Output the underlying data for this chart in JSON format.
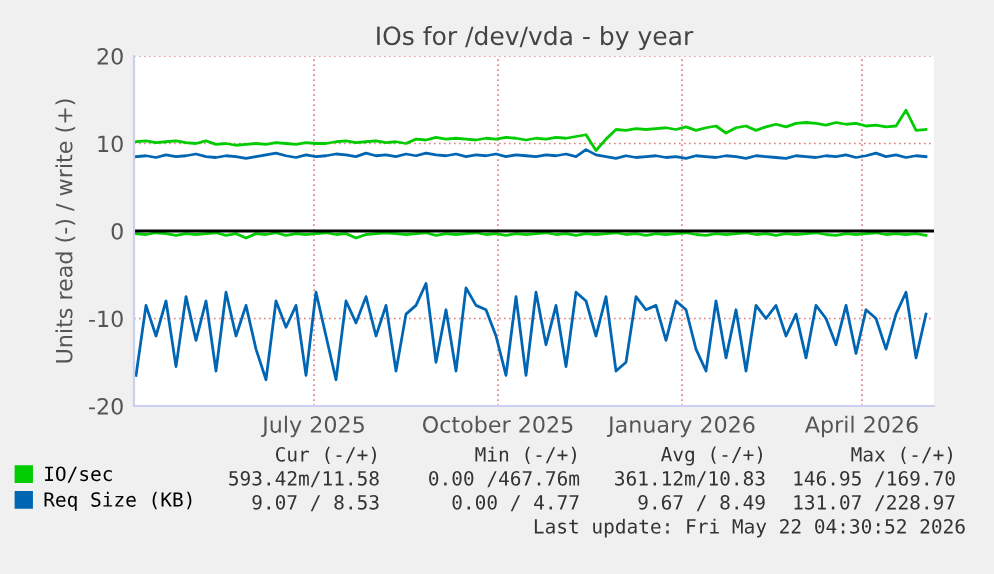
{
  "chart_data": {
    "type": "line",
    "title": "IOs for /dev/vda - by year",
    "ylabel": "Units read (-) / write (+)",
    "x": [
      "2025-04-18",
      "2025-04-23",
      "2025-04-28",
      "2025-05-03",
      "2025-05-08",
      "2025-05-13",
      "2025-05-18",
      "2025-05-23",
      "2025-05-28",
      "2025-06-02",
      "2025-06-07",
      "2025-06-12",
      "2025-06-17",
      "2025-06-22",
      "2025-06-27",
      "2025-07-02",
      "2025-07-07",
      "2025-07-12",
      "2025-07-17",
      "2025-07-22",
      "2025-07-27",
      "2025-08-01",
      "2025-08-06",
      "2025-08-11",
      "2025-08-16",
      "2025-08-21",
      "2025-08-26",
      "2025-08-31",
      "2025-09-05",
      "2025-09-10",
      "2025-09-15",
      "2025-09-20",
      "2025-09-25",
      "2025-09-30",
      "2025-10-05",
      "2025-10-10",
      "2025-10-15",
      "2025-10-20",
      "2025-10-25",
      "2025-10-30",
      "2025-11-04",
      "2025-11-09",
      "2025-11-14",
      "2025-11-19",
      "2025-11-24",
      "2025-11-29",
      "2025-12-04",
      "2025-12-09",
      "2025-12-14",
      "2025-12-19",
      "2025-12-24",
      "2025-12-29",
      "2026-01-03",
      "2026-01-08",
      "2026-01-13",
      "2026-01-18",
      "2026-01-23",
      "2026-01-28",
      "2026-02-02",
      "2026-02-07",
      "2026-02-12",
      "2026-02-17",
      "2026-02-22",
      "2026-02-27",
      "2026-03-04",
      "2026-03-09",
      "2026-03-14",
      "2026-03-19",
      "2026-03-24",
      "2026-03-29",
      "2026-04-03",
      "2026-04-08",
      "2026-04-13",
      "2026-04-18",
      "2026-04-23",
      "2026-04-28",
      "2026-05-03",
      "2026-05-08",
      "2026-05-13",
      "2026-05-18"
    ],
    "series": [
      {
        "name": "IO/sec",
        "color": "#00cc00",
        "values": [
          10.2,
          10.3,
          10.1,
          10.2,
          10.3,
          10.1,
          10.0,
          10.3,
          9.9,
          10.0,
          9.8,
          9.9,
          10.0,
          9.9,
          10.1,
          10.0,
          9.9,
          10.1,
          10.0,
          10.0,
          10.2,
          10.3,
          10.1,
          10.2,
          10.3,
          10.1,
          10.2,
          10.0,
          10.5,
          10.4,
          10.7,
          10.5,
          10.6,
          10.5,
          10.4,
          10.6,
          10.5,
          10.7,
          10.6,
          10.4,
          10.6,
          10.5,
          10.7,
          10.6,
          10.8,
          11.0,
          9.2,
          10.5,
          11.6,
          11.5,
          11.7,
          11.6,
          11.7,
          11.8,
          11.6,
          11.9,
          11.5,
          11.8,
          12.0,
          11.2,
          11.8,
          12.0,
          11.5,
          11.9,
          12.2,
          11.9,
          12.3,
          12.4,
          12.3,
          12.1,
          12.4,
          12.2,
          12.3,
          12.0,
          12.1,
          11.9,
          12.0,
          13.8,
          11.5,
          11.6
        ]
      },
      {
        "color": "#00cc00",
        "values": [
          -0.3,
          -0.4,
          -0.2,
          -0.3,
          -0.5,
          -0.3,
          -0.4,
          -0.3,
          -0.2,
          -0.5,
          -0.3,
          -0.8,
          -0.3,
          -0.4,
          -0.2,
          -0.5,
          -0.3,
          -0.4,
          -0.3,
          -0.2,
          -0.4,
          -0.3,
          -0.8,
          -0.4,
          -0.3,
          -0.2,
          -0.3,
          -0.4,
          -0.3,
          -0.2,
          -0.5,
          -0.3,
          -0.4,
          -0.3,
          -0.2,
          -0.4,
          -0.3,
          -0.5,
          -0.3,
          -0.4,
          -0.3,
          -0.2,
          -0.4,
          -0.3,
          -0.5,
          -0.3,
          -0.4,
          -0.3,
          -0.2,
          -0.4,
          -0.3,
          -0.5,
          -0.3,
          -0.4,
          -0.3,
          -0.2,
          -0.4,
          -0.5,
          -0.3,
          -0.4,
          -0.3,
          -0.2,
          -0.4,
          -0.3,
          -0.5,
          -0.3,
          -0.4,
          -0.3,
          -0.2,
          -0.4,
          -0.5,
          -0.3,
          -0.4,
          -0.3,
          -0.2,
          -0.4,
          -0.3,
          -0.4,
          -0.3,
          -0.5
        ]
      },
      {
        "name": "Req Size (KB)",
        "color": "#0066b3",
        "values": [
          8.5,
          8.6,
          8.4,
          8.7,
          8.5,
          8.6,
          8.8,
          8.5,
          8.4,
          8.6,
          8.5,
          8.3,
          8.5,
          8.7,
          8.9,
          8.6,
          8.4,
          8.7,
          8.5,
          8.6,
          8.8,
          8.7,
          8.5,
          8.9,
          8.6,
          8.7,
          8.5,
          8.8,
          8.6,
          8.9,
          8.7,
          8.6,
          8.8,
          8.5,
          8.7,
          8.6,
          8.8,
          8.5,
          8.7,
          8.6,
          8.5,
          8.7,
          8.6,
          8.8,
          8.5,
          9.3,
          8.7,
          8.5,
          8.3,
          8.6,
          8.4,
          8.5,
          8.6,
          8.4,
          8.5,
          8.3,
          8.6,
          8.5,
          8.4,
          8.6,
          8.5,
          8.3,
          8.6,
          8.5,
          8.4,
          8.3,
          8.6,
          8.5,
          8.4,
          8.6,
          8.5,
          8.7,
          8.4,
          8.6,
          8.9,
          8.5,
          8.7,
          8.4,
          8.6,
          8.5
        ]
      },
      {
        "color": "#0066b3",
        "values": [
          -16.5,
          -8.5,
          -12.0,
          -8.0,
          -15.5,
          -7.5,
          -12.5,
          -8.0,
          -16.0,
          -7.0,
          -12.0,
          -8.5,
          -13.5,
          -17.0,
          -8.0,
          -11.0,
          -8.5,
          -16.5,
          -7.0,
          -12.0,
          -17.0,
          -8.0,
          -10.5,
          -7.5,
          -12.0,
          -8.5,
          -16.0,
          -9.5,
          -8.5,
          -6.0,
          -15.0,
          -9.0,
          -16.0,
          -6.5,
          -8.5,
          -9.0,
          -12.0,
          -16.5,
          -7.5,
          -16.5,
          -7.0,
          -13.0,
          -8.5,
          -15.5,
          -7.0,
          -8.0,
          -12.0,
          -7.5,
          -16.0,
          -15.0,
          -7.5,
          -9.0,
          -8.5,
          -12.5,
          -8.0,
          -9.0,
          -13.5,
          -16.0,
          -8.0,
          -14.5,
          -9.0,
          -16.0,
          -8.5,
          -10.0,
          -8.5,
          -12.0,
          -9.5,
          -14.5,
          -8.5,
          -10.0,
          -13.0,
          -8.5,
          -14.0,
          -9.0,
          -10.0,
          -13.5,
          -9.5,
          -7.0,
          -14.5,
          -9.5
        ]
      }
    ],
    "xlim": [
      "2025-04-17",
      "2026-05-22"
    ],
    "xticks": [
      {
        "value": "2025-07-16",
        "label": "July 2025"
      },
      {
        "value": "2025-10-16",
        "label": "October 2025"
      },
      {
        "value": "2026-01-16",
        "label": "January 2026"
      },
      {
        "value": "2026-04-16",
        "label": "April 2026"
      }
    ],
    "ylim": [
      -20,
      20
    ],
    "yticks": [
      -20,
      -10,
      0,
      10,
      20
    ],
    "ref_lines": [
      {
        "axis": "y",
        "value": 0,
        "color": "#000000"
      }
    ],
    "grid": true,
    "legend": "bottom left",
    "annotations": [
      "Cur (-/+)",
      "Min (-/+)",
      "Avg (-/+)",
      "Max (-/+)",
      "593.42m/11.58",
      "0.00 /467.76m",
      "361.12m/10.83",
      "146.95 /169.70",
      "9.07 / 8.53",
      "0.00 / 4.77",
      "9.67 / 8.49",
      "131.07 /228.97",
      "Last update: Fri May 22 04:30:52 2026"
    ]
  }
}
